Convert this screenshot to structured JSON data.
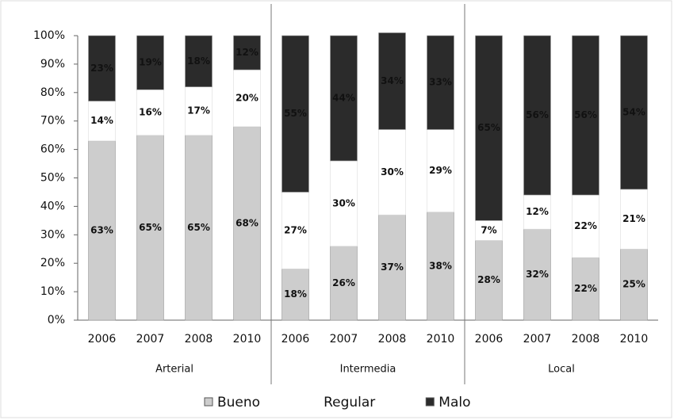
{
  "chart_data": {
    "type": "stacked_bar",
    "categories": [
      "2006",
      "2007",
      "2008",
      "2010",
      "2006",
      "2007",
      "2008",
      "2010",
      "2006",
      "2007",
      "2008",
      "2010"
    ],
    "groups": [
      "Arterial",
      "Intermedia",
      "Local"
    ],
    "series": [
      {
        "name": "Bueno",
        "color": "#cdcdcd",
        "values": [
          63,
          65,
          65,
          68,
          18,
          26,
          37,
          38,
          28,
          32,
          22,
          25
        ],
        "value_labels": [
          "63%",
          "65%",
          "65%",
          "68%",
          "18%",
          "26%",
          "37%",
          "38%",
          "28%",
          "32%",
          "22%",
          "25%"
        ]
      },
      {
        "name": "Regular",
        "color": "#ffffff",
        "values": [
          14,
          16,
          17,
          20,
          27,
          30,
          30,
          29,
          7,
          12,
          22,
          21
        ],
        "value_labels": [
          "14%",
          "16%",
          "17%",
          "20%",
          "27%",
          "30%",
          "30%",
          "29%",
          "7%",
          "12%",
          "22%",
          "21%"
        ]
      },
      {
        "name": "Malo",
        "color": "#2b2b2b",
        "values": [
          23,
          19,
          18,
          12,
          55,
          44,
          34,
          33,
          65,
          56,
          56,
          54
        ],
        "value_labels": [
          "23%",
          "19%",
          "18%",
          "12%",
          "55%",
          "44%",
          "34%",
          "33%",
          "65%",
          "56%",
          "56%",
          "54%"
        ]
      }
    ],
    "ylim": [
      0,
      100
    ],
    "yticks": [
      {
        "value": 0,
        "label": "0%"
      },
      {
        "value": 10,
        "label": "10%"
      },
      {
        "value": 20,
        "label": "20%"
      },
      {
        "value": 30,
        "label": "30%"
      },
      {
        "value": 40,
        "label": "40%"
      },
      {
        "value": 50,
        "label": "50%"
      },
      {
        "value": 60,
        "label": "60%"
      },
      {
        "value": 70,
        "label": "70%"
      },
      {
        "value": 80,
        "label": "80%"
      },
      {
        "value": 90,
        "label": "90%"
      },
      {
        "value": 100,
        "label": "100%"
      }
    ],
    "legend": "bottom"
  }
}
